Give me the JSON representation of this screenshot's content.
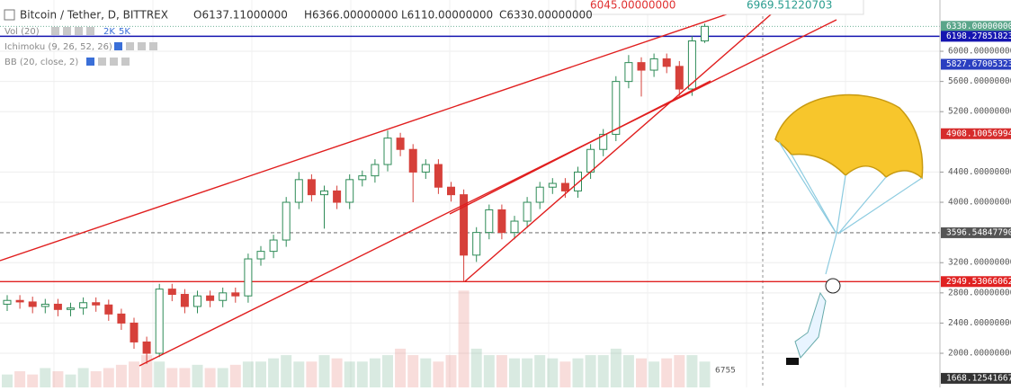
{
  "chart_data": {
    "type": "candlestick",
    "title": "Bitcoin / Tether, D, BITTREX",
    "ohlc_texts": [
      "O6137.11000000",
      "H6366.00000000",
      "L6110.00000000",
      "C6330.00000000"
    ],
    "indicators": [
      "Vol (20)",
      "Ichimoku (9, 26, 52, 26)",
      "BB (20, close, 2)"
    ],
    "volume_texts": [
      "2K",
      "5K"
    ],
    "popup_texts": [
      "6045.00000000",
      "6969.51220703"
    ],
    "corner_label": "6755",
    "open": [
      2650,
      2700,
      2680,
      2620,
      2650,
      2580,
      2600,
      2670,
      2640,
      2520,
      2400,
      2150,
      2000,
      2850,
      2780,
      2620,
      2760,
      2700,
      2800,
      2760,
      3250,
      3350,
      3500,
      4000,
      4300,
      4100,
      4150,
      4000,
      4300,
      4350,
      4500,
      4850,
      4700,
      4400,
      4500,
      4200,
      4100,
      3300,
      3600,
      3900,
      3600,
      3750,
      4000,
      4200,
      4250,
      4150,
      4400,
      4700,
      4900,
      5600,
      5850,
      5750,
      5900,
      5800,
      5500,
      6137.11
    ],
    "high": [
      2770,
      2770,
      2750,
      2720,
      2720,
      2670,
      2740,
      2740,
      2710,
      2590,
      2470,
      2220,
      2920,
      2920,
      2850,
      2830,
      2830,
      2870,
      2870,
      3320,
      3420,
      3570,
      4070,
      4400,
      4370,
      4220,
      4220,
      4370,
      4420,
      4570,
      4950,
      4920,
      4770,
      4570,
      4570,
      4270,
      4170,
      3670,
      3970,
      3970,
      3820,
      4070,
      4270,
      4320,
      4320,
      4470,
      4770,
      4970,
      5670,
      5950,
      5920,
      5970,
      5970,
      5870,
      6200,
      6366
    ],
    "low": [
      2560,
      2590,
      2530,
      2530,
      2490,
      2490,
      2510,
      2550,
      2430,
      2310,
      2060,
      1860,
      1950,
      2690,
      2530,
      2530,
      2610,
      2610,
      2670,
      2670,
      3160,
      3260,
      3410,
      3910,
      4010,
      3650,
      3910,
      3910,
      4210,
      4260,
      4410,
      4610,
      4000,
      4310,
      4110,
      4010,
      2950,
      3210,
      3510,
      3510,
      3510,
      3660,
      3910,
      4110,
      4060,
      4060,
      4310,
      4610,
      4810,
      5510,
      5400,
      5660,
      5710,
      5410,
      5410,
      6110
    ],
    "close": [
      2700,
      2680,
      2620,
      2650,
      2580,
      2600,
      2670,
      2640,
      2520,
      2400,
      2150,
      2000,
      2850,
      2780,
      2620,
      2760,
      2700,
      2800,
      2760,
      3250,
      3350,
      3500,
      4000,
      4300,
      4100,
      4150,
      4000,
      4300,
      4350,
      4500,
      4850,
      4700,
      4400,
      4500,
      4200,
      4100,
      3300,
      3600,
      3900,
      3600,
      3750,
      4000,
      4200,
      4250,
      4150,
      4400,
      4700,
      4900,
      5600,
      5850,
      5750,
      5900,
      5800,
      5500,
      6137.11,
      6330
    ],
    "volume": [
      2,
      2.5,
      2,
      3,
      2.5,
      2,
      3,
      2.5,
      3,
      3.5,
      4,
      5,
      4,
      3,
      3,
      3.5,
      3,
      3,
      3.5,
      4,
      4,
      4.5,
      5,
      4,
      4,
      5,
      4.5,
      4,
      4,
      4.5,
      5,
      6,
      5,
      4.5,
      4,
      5,
      15,
      6,
      5,
      5,
      4.5,
      4.5,
      5,
      4.5,
      4,
      4.5,
      5,
      5,
      6,
      5,
      4.5,
      4,
      4.5,
      5,
      5,
      4
    ],
    "volume_ylim": [
      0,
      60
    ],
    "up_color": "#2e8b57",
    "down_color": "#d6403a",
    "ylim": [
      1548,
      6679
    ],
    "yticks": [
      {
        "value": 2000,
        "label": "2000.00000000"
      },
      {
        "value": 2400,
        "label": "2400.00000000"
      },
      {
        "value": 2800,
        "label": "2800.00000000"
      },
      {
        "value": 3200,
        "label": "3200.00000000"
      },
      {
        "value": 4000,
        "label": "4000.00000000"
      },
      {
        "value": 4400,
        "label": "4400.00000000"
      },
      {
        "value": 5200,
        "label": "5200.00000000"
      },
      {
        "value": 5600,
        "label": "5600.00000000"
      },
      {
        "value": 6000,
        "label": "6000.00000000"
      }
    ],
    "grid": true,
    "price_lines": [
      {
        "value": 6330,
        "label": "6330.00000000",
        "color": "#5aa58a",
        "style": "dotted"
      },
      {
        "value": 6198.27851823,
        "label": "6198.27851823",
        "color": "#1515b0",
        "style": "solid"
      },
      {
        "value": 5827.67005323,
        "label": "5827.67005323",
        "color": "#2a3fc0",
        "style": "none"
      },
      {
        "value": 4908.10056994,
        "label": "4908.10056994",
        "color": "#d62c2c",
        "style": "none"
      },
      {
        "value": 3596.5484779,
        "label": "3596.54847790",
        "color": "#555555",
        "style": "dashed"
      },
      {
        "value": 2949.53066062,
        "label": "2949.53066062",
        "color": "#e02222",
        "style": "solid"
      },
      {
        "value": 1668.12541667,
        "label": "1668.12541667",
        "color": "#333333",
        "style": "none"
      }
    ]
  }
}
